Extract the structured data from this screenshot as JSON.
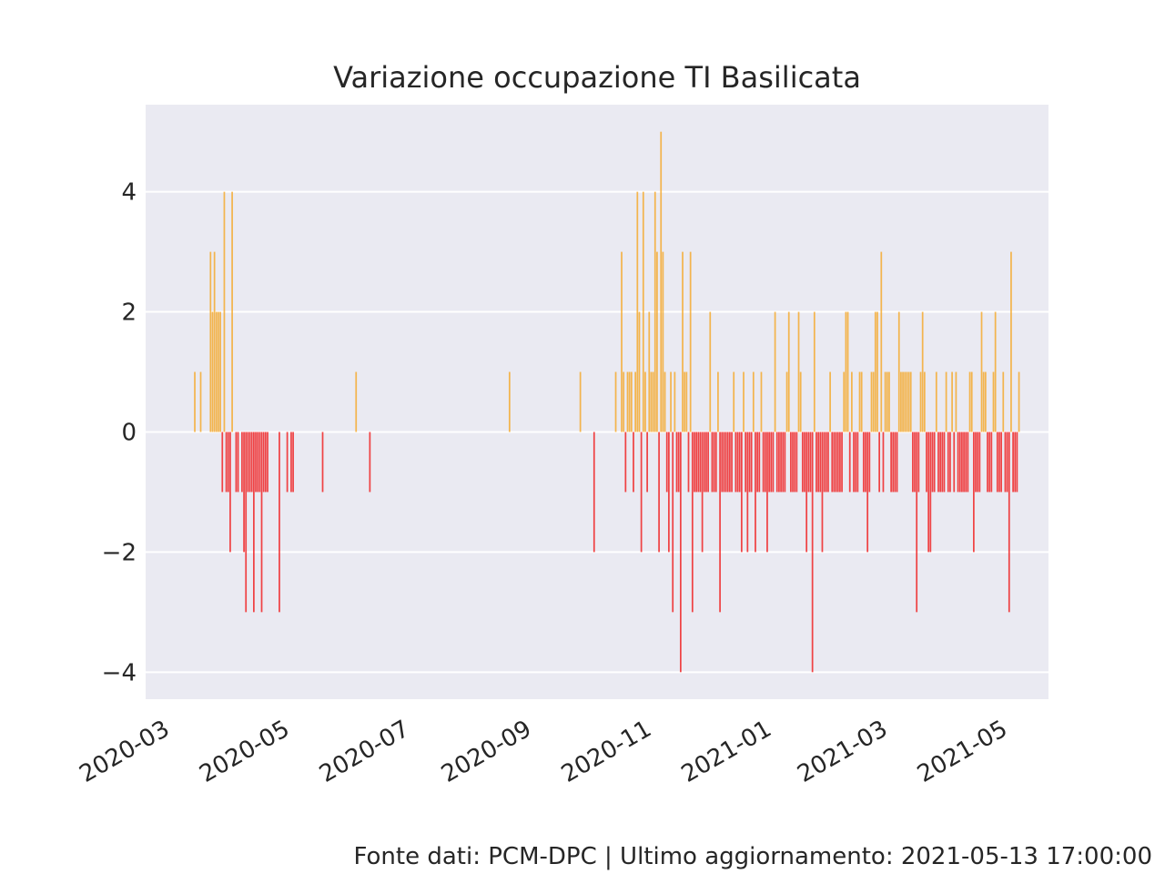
{
  "chart_data": {
    "type": "bar",
    "title": "Variazione occupazione TI Basilicata",
    "xlabel": "",
    "ylabel": "",
    "xlim": [
      "2020-02-24",
      "2021-05-28"
    ],
    "ylim": [
      -4.45,
      5.45
    ],
    "yticks": [
      4,
      2,
      0,
      -2,
      -4
    ],
    "ytick_labels": [
      "4",
      "2",
      "0",
      "−2",
      "−4"
    ],
    "xticks": [
      "2020-03-01",
      "2020-05-01",
      "2020-07-01",
      "2020-09-01",
      "2020-11-01",
      "2021-01-01",
      "2021-03-01",
      "2021-05-01"
    ],
    "xtick_labels": [
      "2020-03",
      "2020-05",
      "2020-07",
      "2020-09",
      "2020-11",
      "2021-01",
      "2021-03",
      "2021-05"
    ],
    "grid": true,
    "colors": {
      "positive": "#f5a623",
      "negative": "#f01818",
      "background": "#eaeaf2",
      "grid": "#ffffff"
    },
    "series": [
      {
        "dates": [
          "2020-03-20",
          "2020-03-23",
          "2020-03-28",
          "2020-03-29",
          "2020-03-30",
          "2020-03-31",
          "2020-04-01",
          "2020-04-02",
          "2020-04-03",
          "2020-04-04",
          "2020-04-05",
          "2020-04-06",
          "2020-04-07",
          "2020-04-08",
          "2020-04-10",
          "2020-04-11",
          "2020-04-13",
          "2020-04-14",
          "2020-04-15",
          "2020-04-16",
          "2020-04-17",
          "2020-04-18",
          "2020-04-19",
          "2020-04-20",
          "2020-04-21",
          "2020-04-22",
          "2020-04-23",
          "2020-04-24",
          "2020-04-25",
          "2020-04-26",
          "2020-05-02",
          "2020-05-06",
          "2020-05-08",
          "2020-05-09",
          "2020-05-24",
          "2020-06-10",
          "2020-06-17",
          "2020-08-27",
          "2020-10-02",
          "2020-10-09",
          "2020-10-20",
          "2020-10-23",
          "2020-10-24",
          "2020-10-25",
          "2020-10-26",
          "2020-10-27",
          "2020-10-28",
          "2020-10-29",
          "2020-10-30",
          "2020-10-31",
          "2020-11-01",
          "2020-11-02",
          "2020-11-03",
          "2020-11-04",
          "2020-11-05",
          "2020-11-06",
          "2020-11-07",
          "2020-11-08",
          "2020-11-09",
          "2020-11-10",
          "2020-11-11",
          "2020-11-12",
          "2020-11-13",
          "2020-11-14",
          "2020-11-15",
          "2020-11-16",
          "2020-11-17",
          "2020-11-18",
          "2020-11-19",
          "2020-11-20",
          "2020-11-21",
          "2020-11-22",
          "2020-11-23",
          "2020-11-24",
          "2020-11-25",
          "2020-11-26",
          "2020-11-27",
          "2020-11-28",
          "2020-11-29",
          "2020-11-30",
          "2020-12-01",
          "2020-12-02",
          "2020-12-03",
          "2020-12-04",
          "2020-12-05",
          "2020-12-06",
          "2020-12-07",
          "2020-12-08",
          "2020-12-09",
          "2020-12-10",
          "2020-12-11",
          "2020-12-12",
          "2020-12-13",
          "2020-12-14",
          "2020-12-15",
          "2020-12-16",
          "2020-12-17",
          "2020-12-18",
          "2020-12-19",
          "2020-12-20",
          "2020-12-21",
          "2020-12-22",
          "2020-12-23",
          "2020-12-24",
          "2020-12-25",
          "2020-12-26",
          "2020-12-27",
          "2020-12-28",
          "2020-12-29",
          "2020-12-30",
          "2020-12-31",
          "2021-01-01",
          "2021-01-02",
          "2021-01-03",
          "2021-01-04",
          "2021-01-05",
          "2021-01-06",
          "2021-01-07",
          "2021-01-08",
          "2021-01-09",
          "2021-01-10",
          "2021-01-11",
          "2021-01-12",
          "2021-01-13",
          "2021-01-14",
          "2021-01-15",
          "2021-01-16",
          "2021-01-17",
          "2021-01-18",
          "2021-01-19",
          "2021-01-20",
          "2021-01-21",
          "2021-01-22",
          "2021-01-23",
          "2021-01-24",
          "2021-01-25",
          "2021-01-26",
          "2021-01-27",
          "2021-01-28",
          "2021-01-29",
          "2021-01-30",
          "2021-01-31",
          "2021-02-01",
          "2021-02-02",
          "2021-02-03",
          "2021-02-04",
          "2021-02-05",
          "2021-02-06",
          "2021-02-07",
          "2021-02-08",
          "2021-02-09",
          "2021-02-10",
          "2021-02-11",
          "2021-02-12",
          "2021-02-13",
          "2021-02-14",
          "2021-02-15",
          "2021-02-16",
          "2021-02-17",
          "2021-02-18",
          "2021-02-19",
          "2021-02-20",
          "2021-02-21",
          "2021-02-22",
          "2021-02-23",
          "2021-02-24",
          "2021-02-25",
          "2021-02-26",
          "2021-02-27",
          "2021-02-28",
          "2021-03-01",
          "2021-03-02",
          "2021-03-03",
          "2021-03-04",
          "2021-03-05",
          "2021-03-06",
          "2021-03-07",
          "2021-03-08",
          "2021-03-09",
          "2021-03-10",
          "2021-03-11",
          "2021-03-12",
          "2021-03-13",
          "2021-03-14",
          "2021-03-15",
          "2021-03-16",
          "2021-03-17",
          "2021-03-18",
          "2021-03-19",
          "2021-03-20",
          "2021-03-21",
          "2021-03-22",
          "2021-03-23",
          "2021-03-24",
          "2021-03-25",
          "2021-03-26",
          "2021-03-27",
          "2021-03-28",
          "2021-03-29",
          "2021-03-30",
          "2021-03-31",
          "2021-04-01",
          "2021-04-02",
          "2021-04-03",
          "2021-04-04",
          "2021-04-05",
          "2021-04-06",
          "2021-04-07",
          "2021-04-08",
          "2021-04-09",
          "2021-04-10",
          "2021-04-11",
          "2021-04-12",
          "2021-04-13",
          "2021-04-14",
          "2021-04-15",
          "2021-04-16",
          "2021-04-17",
          "2021-04-18",
          "2021-04-19",
          "2021-04-20",
          "2021-04-21",
          "2021-04-22",
          "2021-04-23",
          "2021-04-24",
          "2021-04-25",
          "2021-04-26",
          "2021-04-27",
          "2021-04-28",
          "2021-04-29",
          "2021-04-30",
          "2021-05-01",
          "2021-05-02",
          "2021-05-03",
          "2021-05-04",
          "2021-05-05",
          "2021-05-06",
          "2021-05-07",
          "2021-05-08",
          "2021-05-09",
          "2021-05-10",
          "2021-05-11",
          "2021-05-12",
          "2021-05-13"
        ],
        "values": [
          1,
          1,
          3,
          2,
          3,
          2,
          2,
          2,
          -1,
          4,
          -1,
          -1,
          -2,
          4,
          -1,
          -1,
          -1,
          -2,
          -3,
          -1,
          -1,
          -1,
          -3,
          -1,
          -1,
          -1,
          -3,
          -1,
          -1,
          -1,
          -3,
          -1,
          -1,
          -1,
          -1,
          1,
          -1,
          1,
          1,
          -2,
          1,
          3,
          1,
          -1,
          1,
          1,
          1,
          -1,
          1,
          4,
          2,
          -2,
          4,
          1,
          -1,
          2,
          1,
          1,
          4,
          3,
          -2,
          5,
          3,
          1,
          -1,
          -2,
          1,
          -3,
          1,
          -1,
          -1,
          -4,
          3,
          1,
          1,
          -1,
          3,
          -3,
          -1,
          -1,
          -1,
          -1,
          -2,
          -1,
          -1,
          -1,
          2,
          -1,
          -1,
          -1,
          1,
          -3,
          -1,
          -1,
          -1,
          -1,
          -1,
          -1,
          1,
          -1,
          -1,
          -1,
          -2,
          1,
          -1,
          -2,
          -1,
          -1,
          1,
          -2,
          -1,
          -1,
          1,
          -1,
          -1,
          -2,
          -1,
          -1,
          -1,
          2,
          -1,
          -1,
          -1,
          -1,
          -1,
          1,
          2,
          -1,
          -1,
          -1,
          -1,
          2,
          1,
          -1,
          -1,
          -2,
          -1,
          -1,
          -4,
          2,
          -1,
          -1,
          -1,
          -2,
          -1,
          -1,
          -1,
          1,
          -1,
          -1,
          -1,
          -1,
          -1,
          -1,
          1,
          2,
          2,
          -1,
          1,
          -1,
          -1,
          -1,
          1,
          1,
          -1,
          -1,
          -2,
          -1,
          1,
          1,
          2,
          2,
          -1,
          3,
          -1,
          1,
          1,
          1,
          -1,
          -1,
          -1,
          -1,
          2,
          1,
          1,
          1,
          1,
          1,
          1,
          -1,
          -1,
          -3,
          -1,
          1,
          2,
          1,
          -1,
          -2,
          -2,
          -1,
          -1,
          1,
          -1,
          -1,
          -1,
          -1,
          1,
          -1,
          -1,
          1,
          -1,
          1,
          -1,
          -1,
          -1,
          -1,
          -1,
          -1,
          1,
          1,
          -2,
          -1,
          -1,
          -1,
          2,
          1,
          1,
          -1,
          -1,
          -1,
          1,
          2,
          -1,
          -1,
          -1,
          1,
          -1,
          -1,
          -3,
          3,
          -1,
          -1,
          -1,
          1
        ]
      }
    ]
  },
  "footer": "Fonte dati: PCM-DPC | Ultimo aggiornamento: 2021-05-13 17:00:00"
}
